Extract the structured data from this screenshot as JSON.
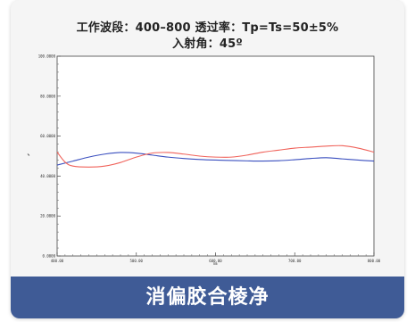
{
  "header": {
    "line1": "工作波段：400–800 透过率：Tp=Ts=50±5%",
    "line2": "入射角：45º"
  },
  "footer": {
    "label": "消偏胶合棱净"
  },
  "chart_data": {
    "type": "line",
    "xlabel": "nm",
    "ylabel": "%",
    "xlim": [
      400,
      800
    ],
    "ylim": [
      0,
      100
    ],
    "x_ticks": [
      400,
      500,
      600,
      700,
      800
    ],
    "x_tick_labels": [
      "400.00",
      "500.00",
      "600.00",
      "700.00",
      "800.00"
    ],
    "y_ticks": [
      0,
      20,
      40,
      60,
      80,
      100
    ],
    "y_tick_labels": [
      "0.0000",
      "20.0000",
      "40.0000",
      "60.0000",
      "80.0000",
      "100.0000"
    ],
    "grid": false,
    "series": [
      {
        "color": "#3a4fbf",
        "x": [
          400,
          420,
          440,
          460,
          480,
          500,
          520,
          540,
          560,
          580,
          600,
          620,
          640,
          660,
          680,
          700,
          720,
          740,
          760,
          780,
          800
        ],
        "y": [
          45.5,
          47.5,
          49.5,
          51,
          51.8,
          51.5,
          50.5,
          49.5,
          48.8,
          48.3,
          48,
          47.8,
          47.6,
          47.5,
          47.7,
          48.2,
          48.8,
          49.2,
          48.6,
          48,
          47.5
        ]
      },
      {
        "color": "#f0625a",
        "x": [
          400,
          410,
          420,
          440,
          460,
          480,
          500,
          520,
          540,
          560,
          580,
          600,
          620,
          640,
          660,
          680,
          700,
          720,
          740,
          760,
          780,
          800
        ],
        "y": [
          52,
          47,
          45,
          44.5,
          45,
          46.8,
          49.5,
          51.5,
          51.8,
          51,
          50,
          49.5,
          49.5,
          50.5,
          52,
          53,
          54,
          54.5,
          55,
          55.2,
          54,
          52
        ]
      }
    ]
  }
}
